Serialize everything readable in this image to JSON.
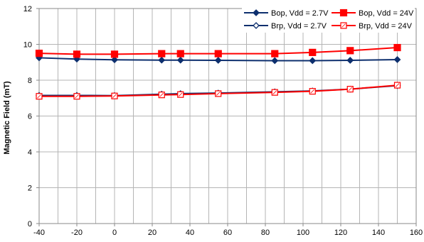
{
  "chart_data": {
    "type": "line",
    "title": "",
    "xlabel": "",
    "ylabel": "Magnetic Field (mT)",
    "xlim": [
      -40,
      160
    ],
    "ylim": [
      0,
      12
    ],
    "xticks": [
      -40,
      -20,
      0,
      20,
      40,
      60,
      80,
      100,
      120,
      140,
      160
    ],
    "yticks": [
      0,
      2,
      4,
      6,
      8,
      10,
      12
    ],
    "grid": true,
    "legend_position": "top-right",
    "series": [
      {
        "name": "Bop, Vdd = 2.7V",
        "color": "#0d2f6e",
        "marker": "diamond-filled",
        "x": [
          -40,
          -20,
          0,
          25,
          35,
          55,
          85,
          105,
          125,
          150
        ],
        "y": [
          9.25,
          9.18,
          9.14,
          9.12,
          9.12,
          9.11,
          9.09,
          9.09,
          9.11,
          9.15
        ]
      },
      {
        "name": "Bop, Vdd = 24V",
        "color": "#ff0000",
        "marker": "square-filled",
        "x": [
          -40,
          -20,
          0,
          25,
          35,
          55,
          85,
          105,
          125,
          150
        ],
        "y": [
          9.5,
          9.45,
          9.45,
          9.48,
          9.48,
          9.48,
          9.48,
          9.55,
          9.65,
          9.82
        ]
      },
      {
        "name": "Brp, Vdd = 2.7V",
        "color": "#0d2f6e",
        "marker": "diamond-open",
        "x": [
          -40,
          -20,
          0,
          25,
          35,
          55,
          85,
          105,
          125,
          150
        ],
        "y": [
          7.15,
          7.15,
          7.14,
          7.22,
          7.25,
          7.28,
          7.35,
          7.4,
          7.5,
          7.7
        ]
      },
      {
        "name": "Brp, Vdd = 24V",
        "color": "#ff0000",
        "marker": "square-open",
        "x": [
          -40,
          -20,
          0,
          25,
          35,
          55,
          85,
          105,
          125,
          150
        ],
        "y": [
          7.1,
          7.1,
          7.12,
          7.18,
          7.2,
          7.25,
          7.32,
          7.38,
          7.5,
          7.72
        ]
      }
    ]
  }
}
